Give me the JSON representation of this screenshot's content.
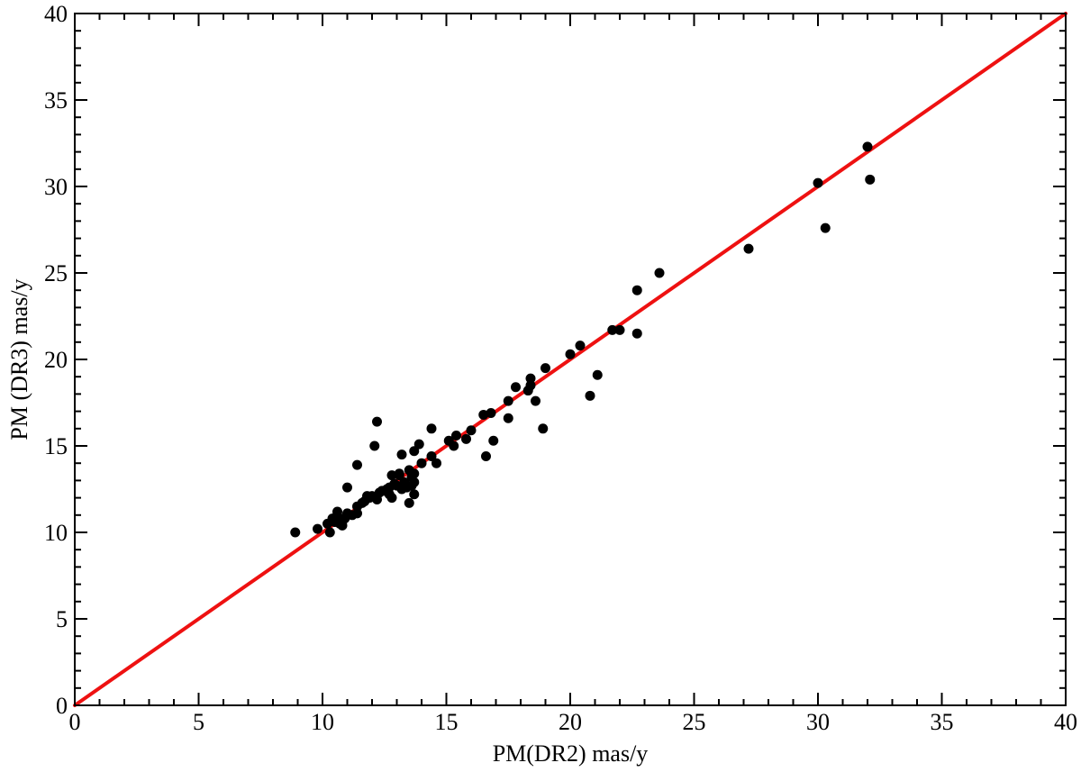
{
  "chart_data": {
    "type": "scatter",
    "xlabel": "PM(DR2)   mas/y",
    "ylabel": "PM (DR3)   mas/y",
    "xlim": [
      0,
      40
    ],
    "ylim": [
      0,
      40
    ],
    "major_step": 5,
    "minor_step": 1,
    "grid": false,
    "xticks": [
      "0",
      "5",
      "10",
      "15",
      "20",
      "25",
      "30",
      "35",
      "40"
    ],
    "yticks": [
      "0",
      "5",
      "10",
      "15",
      "20",
      "25",
      "30",
      "35",
      "40"
    ],
    "reference_line": {
      "x": [
        0,
        40
      ],
      "y": [
        0,
        40
      ],
      "color": "#ee1111"
    },
    "point_color": "#000000",
    "points": [
      [
        8.9,
        10.0
      ],
      [
        9.8,
        10.2
      ],
      [
        10.2,
        10.5
      ],
      [
        10.3,
        10.0
      ],
      [
        10.4,
        10.8
      ],
      [
        10.5,
        10.6
      ],
      [
        10.6,
        11.0
      ],
      [
        10.6,
        11.2
      ],
      [
        10.7,
        10.5
      ],
      [
        10.8,
        10.4
      ],
      [
        10.9,
        10.8
      ],
      [
        11.0,
        11.1
      ],
      [
        11.0,
        12.6
      ],
      [
        11.2,
        11.0
      ],
      [
        11.4,
        11.1
      ],
      [
        11.4,
        11.5
      ],
      [
        11.4,
        13.9
      ],
      [
        11.6,
        11.7
      ],
      [
        11.7,
        11.8
      ],
      [
        11.8,
        12.1
      ],
      [
        11.9,
        12.0
      ],
      [
        12.0,
        12.1
      ],
      [
        12.1,
        15.0
      ],
      [
        12.2,
        11.9
      ],
      [
        12.2,
        16.4
      ],
      [
        12.3,
        12.3
      ],
      [
        12.4,
        12.4
      ],
      [
        12.5,
        12.4
      ],
      [
        12.6,
        12.5
      ],
      [
        12.7,
        12.6
      ],
      [
        12.7,
        12.2
      ],
      [
        12.8,
        13.3
      ],
      [
        12.8,
        12.0
      ],
      [
        12.9,
        12.8
      ],
      [
        13.0,
        12.7
      ],
      [
        13.1,
        13.3
      ],
      [
        13.1,
        13.4
      ],
      [
        13.2,
        12.5
      ],
      [
        13.2,
        14.5
      ],
      [
        13.3,
        12.9
      ],
      [
        13.4,
        12.6
      ],
      [
        13.5,
        13.6
      ],
      [
        13.5,
        11.7
      ],
      [
        13.6,
        12.7
      ],
      [
        13.6,
        13.2
      ],
      [
        13.7,
        13.4
      ],
      [
        13.7,
        12.9
      ],
      [
        13.7,
        12.2
      ],
      [
        13.7,
        14.7
      ],
      [
        13.9,
        15.1
      ],
      [
        14.0,
        14.0
      ],
      [
        14.4,
        16.0
      ],
      [
        14.4,
        14.4
      ],
      [
        14.6,
        14.0
      ],
      [
        15.1,
        15.3
      ],
      [
        15.3,
        15.0
      ],
      [
        15.4,
        15.6
      ],
      [
        15.8,
        15.4
      ],
      [
        16.0,
        15.9
      ],
      [
        16.5,
        16.8
      ],
      [
        16.6,
        14.4
      ],
      [
        16.8,
        16.9
      ],
      [
        16.9,
        15.3
      ],
      [
        17.5,
        16.6
      ],
      [
        17.5,
        17.6
      ],
      [
        17.8,
        18.4
      ],
      [
        18.3,
        18.2
      ],
      [
        18.4,
        18.5
      ],
      [
        18.4,
        18.9
      ],
      [
        18.6,
        17.6
      ],
      [
        18.9,
        16.0
      ],
      [
        19.0,
        19.5
      ],
      [
        20.0,
        20.3
      ],
      [
        20.4,
        20.8
      ],
      [
        20.8,
        17.9
      ],
      [
        21.1,
        19.1
      ],
      [
        21.7,
        21.7
      ],
      [
        22.0,
        21.7
      ],
      [
        22.7,
        24.0
      ],
      [
        22.7,
        21.5
      ],
      [
        23.6,
        25.0
      ],
      [
        27.2,
        26.4
      ],
      [
        30.0,
        30.2
      ],
      [
        30.3,
        27.6
      ],
      [
        32.0,
        32.3
      ],
      [
        32.1,
        30.4
      ]
    ]
  }
}
